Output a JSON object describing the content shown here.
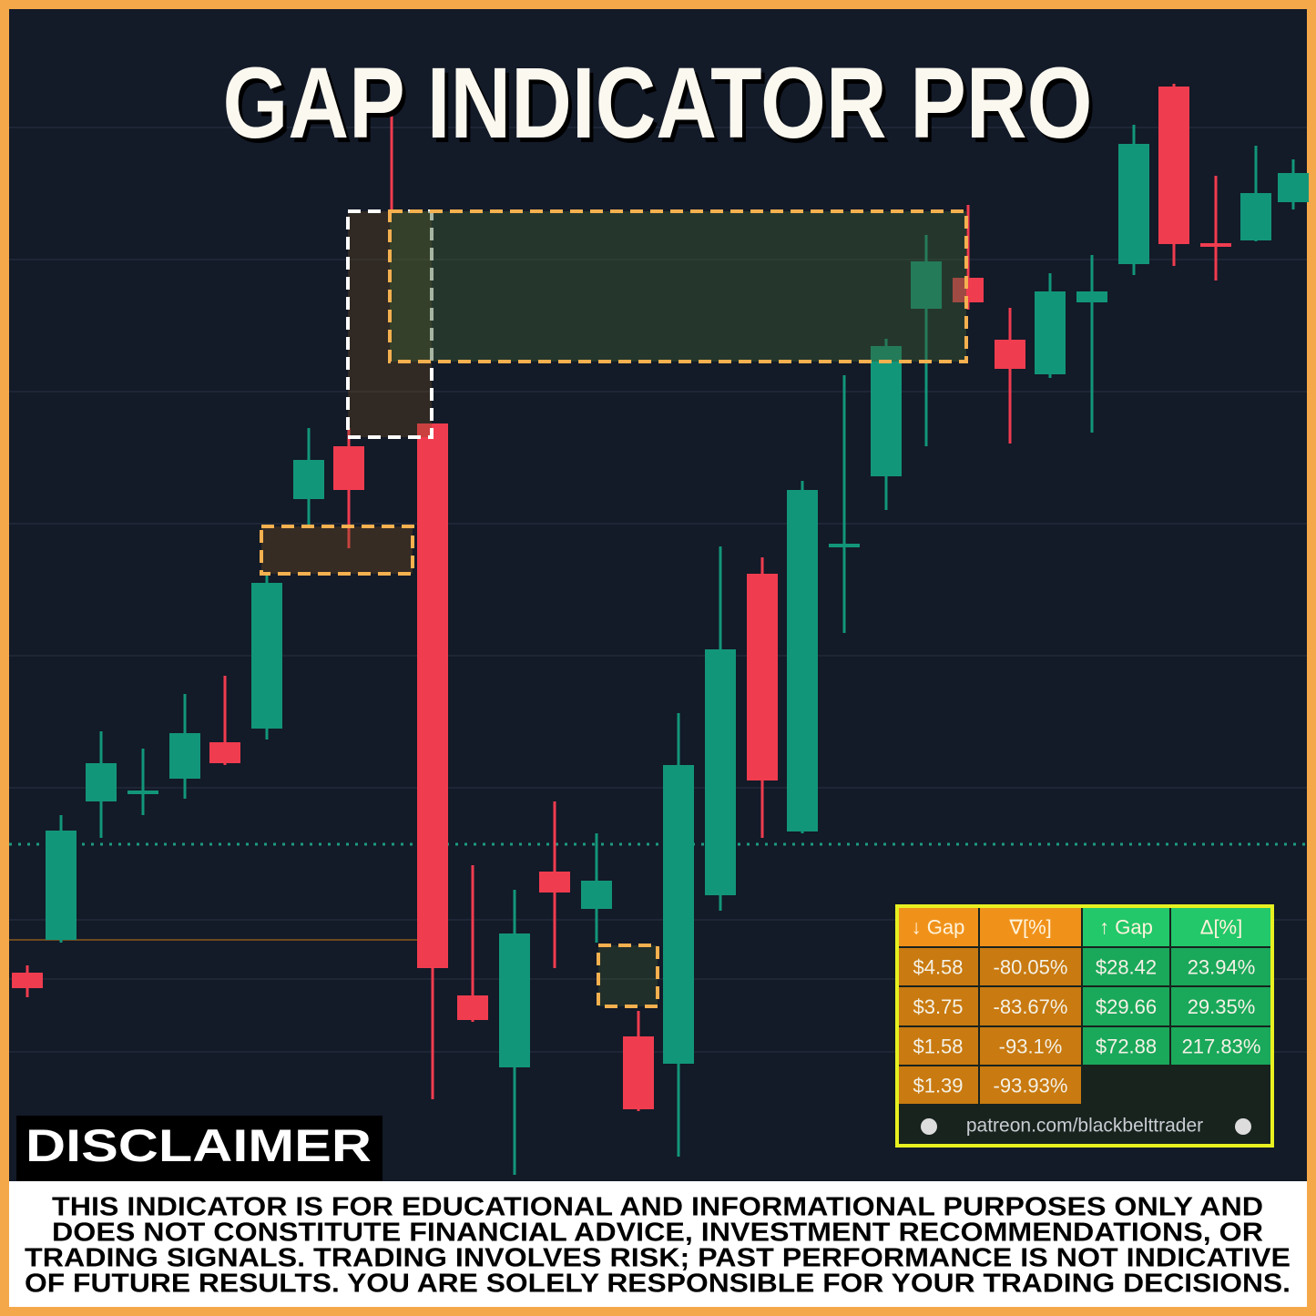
{
  "title": "GAP INDICATOR PRO",
  "table": {
    "header": [
      "↓ Gap",
      "∇[%]",
      "↑ Gap",
      "Δ[%]"
    ],
    "rows": [
      [
        "$4.58",
        "-80.05%",
        "$28.42",
        "23.94%"
      ],
      [
        "$3.75",
        "-83.67%",
        "$29.66",
        "29.35%"
      ],
      [
        "$1.58",
        "-93.1%",
        "$72.88",
        "217.83%"
      ],
      [
        "$1.39",
        "-93.93%"
      ]
    ],
    "footer": "patreon.com/blackbelttrader"
  },
  "disclaimer": {
    "heading": "DISCLAIMER",
    "lines": [
      "THIS INDICATOR IS FOR EDUCATIONAL AND INFORMATIONAL PURPOSES ONLY AND",
      "DOES NOT CONSTITUTE FINANCIAL ADVICE, INVESTMENT RECOMMENDATIONS, OR",
      "TRADING SIGNALS. TRADING INVOLVES RISK; PAST PERFORMANCE IS NOT INDICATIVE",
      "OF FUTURE RESULTS. YOU ARE SOLELY RESPONSIBLE FOR YOUR TRADING DECISIONS."
    ]
  }
}
